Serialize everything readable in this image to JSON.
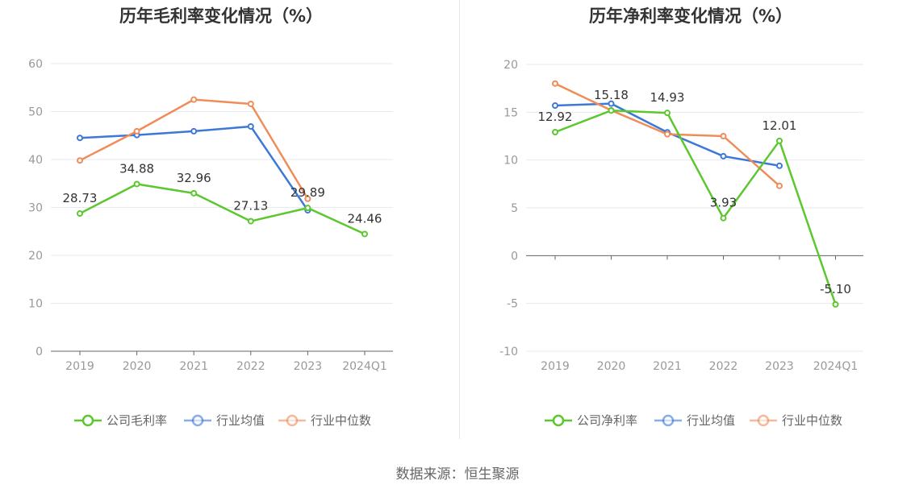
{
  "source": "数据来源：恒生聚源",
  "chart_data": [
    {
      "type": "line",
      "title": "历年毛利率变化情况（%）",
      "categories": [
        "2019",
        "2020",
        "2021",
        "2022",
        "2023",
        "2024Q1"
      ],
      "ylim": [
        0,
        60
      ],
      "yticks": [
        0,
        10,
        20,
        30,
        40,
        50,
        60
      ],
      "grid": true,
      "legend_position": "bottom",
      "series": [
        {
          "name": "公司毛利率",
          "color": "#5cc72e",
          "values": [
            28.73,
            34.88,
            32.96,
            27.13,
            29.89,
            24.46
          ],
          "labels": [
            "28.73",
            "34.88",
            "32.96",
            "27.13",
            "29.89",
            "24.46"
          ]
        },
        {
          "name": "行业均值",
          "color": "#3c78d8",
          "values": [
            44.5,
            45.1,
            45.9,
            46.9,
            29.4,
            null
          ]
        },
        {
          "name": "行业中位数",
          "color": "#f08c5a",
          "values": [
            39.8,
            45.9,
            52.5,
            51.6,
            31.8,
            null
          ]
        }
      ]
    },
    {
      "type": "line",
      "title": "历年净利率变化情况（%）",
      "categories": [
        "2019",
        "2020",
        "2021",
        "2022",
        "2023",
        "2024Q1"
      ],
      "ylim": [
        -10,
        20
      ],
      "yticks": [
        -10,
        -5,
        0,
        5,
        10,
        15,
        20
      ],
      "grid": true,
      "legend_position": "bottom",
      "series": [
        {
          "name": "公司净利率",
          "color": "#5cc72e",
          "values": [
            12.92,
            15.18,
            14.93,
            3.93,
            12.01,
            -5.1
          ],
          "labels": [
            "12.92",
            "15.18",
            "14.93",
            "3.93",
            "12.01",
            "-5.10"
          ]
        },
        {
          "name": "行业均值",
          "color": "#3c78d8",
          "values": [
            15.7,
            15.9,
            12.9,
            10.4,
            9.4,
            null
          ]
        },
        {
          "name": "行业中位数",
          "color": "#f08c5a",
          "values": [
            18.0,
            15.2,
            12.7,
            12.5,
            7.3,
            null
          ]
        }
      ]
    }
  ]
}
